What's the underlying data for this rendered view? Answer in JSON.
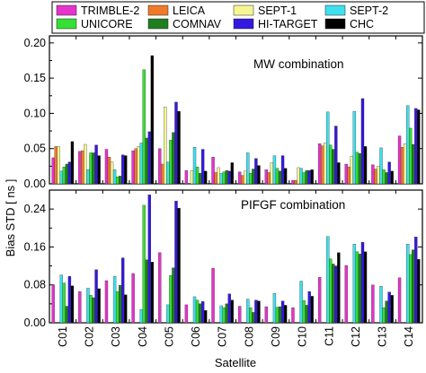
{
  "chart_data": {
    "type": "bar",
    "xlabel": "Satellite",
    "ylabel": "Bias STD [ ns ]",
    "categories": [
      "C01",
      "C02",
      "C03",
      "C04",
      "C05",
      "C06",
      "C07",
      "C08",
      "C09",
      "C10",
      "C11",
      "C12",
      "C13",
      "C14"
    ],
    "legend": [
      {
        "name": "TRIMBLE-2",
        "color": "#e633cc"
      },
      {
        "name": "LEICA",
        "color": "#f07a2a"
      },
      {
        "name": "SEPT-1",
        "color": "#f5f594"
      },
      {
        "name": "SEPT-2",
        "color": "#3fe0ee"
      },
      {
        "name": "UNICORE",
        "color": "#33e033"
      },
      {
        "name": "COMNAV",
        "color": "#1e7e1e"
      },
      {
        "name": "HI-TARGET",
        "color": "#3318e0"
      },
      {
        "name": "CHC",
        "color": "#000000"
      }
    ],
    "panels": [
      {
        "title": "MW combination",
        "ylim": [
          0,
          0.21
        ],
        "yticks": [
          "0.00",
          "0.05",
          "0.10",
          "0.15",
          "0.20"
        ],
        "ytick_values": [
          0,
          0.05,
          0.1,
          0.15,
          0.2
        ],
        "series": [
          {
            "name": "TRIMBLE-2",
            "values": [
              0.037,
              0.046,
              0.049,
              0.047,
              0.05,
              0.019,
              0.038,
              0.017,
              0.02,
              0.005,
              0.057,
              0.028,
              0.027,
              0.068
            ]
          },
          {
            "name": "LEICA",
            "values": [
              0.053,
              0.047,
              0.038,
              0.05,
              0.028,
              0.0,
              0.016,
              0.012,
              0.016,
              0.005,
              0.054,
              0.024,
              0.021,
              0.052
            ]
          },
          {
            "name": "SEPT-1",
            "values": [
              0.053,
              0.056,
              0.031,
              0.053,
              0.109,
              0.019,
              0.023,
              0.018,
              0.03,
              0.023,
              0.058,
              0.039,
              0.025,
              0.057
            ]
          },
          {
            "name": "SEPT-2",
            "values": [
              0.018,
              0.02,
              0.02,
              0.058,
              0.031,
              0.052,
              0.015,
              0.044,
              0.04,
              0.022,
              0.102,
              0.103,
              0.051,
              0.111
            ]
          },
          {
            "name": "UNICORE",
            "values": [
              0.024,
              0.044,
              0.01,
              0.162,
              0.062,
              0.024,
              0.017,
              0.015,
              0.022,
              0.016,
              0.055,
              0.045,
              0.02,
              0.079
            ]
          },
          {
            "name": "COMNAV",
            "values": [
              0.028,
              0.044,
              0.011,
              0.065,
              0.073,
              0.015,
              0.019,
              0.021,
              0.018,
              0.019,
              0.049,
              0.043,
              0.016,
              0.056
            ]
          },
          {
            "name": "HI-TARGET",
            "values": [
              0.031,
              0.055,
              0.041,
              0.074,
              0.116,
              0.049,
              0.018,
              0.036,
              0.04,
              0.019,
              0.082,
              0.121,
              0.031,
              0.107
            ]
          },
          {
            "name": "CHC",
            "values": [
              0.06,
              0.04,
              0.04,
              0.182,
              0.103,
              0.018,
              0.03,
              0.026,
              0.022,
              0.02,
              0.03,
              0.053,
              0.018,
              0.105
            ]
          }
        ]
      },
      {
        "title": "PIFGF combination",
        "ylim": [
          0,
          0.28
        ],
        "yticks": [
          "0.00",
          "0.08",
          "0.16",
          "0.24"
        ],
        "ytick_values": [
          0,
          0.08,
          0.16,
          0.24
        ],
        "series": [
          {
            "name": "TRIMBLE-2",
            "values": [
              0.08,
              0.066,
              0.089,
              0.104,
              0.148,
              0.038,
              0.115,
              0.035,
              0.034,
              0.032,
              0.096,
              0.121,
              0.08,
              0.095
            ]
          },
          {
            "name": "LEICA",
            "values": [
              0.0,
              0.0,
              0.0,
              0.0,
              0.0,
              0.0,
              0.0,
              0.0,
              0.0,
              0.0,
              0.0,
              0.0,
              0.0,
              0.0
            ]
          },
          {
            "name": "SEPT-1",
            "values": [
              0.0,
              0.0,
              0.0,
              0.0,
              0.0,
              0.0,
              0.0,
              0.0,
              0.0,
              0.0,
              0.0,
              0.0,
              0.0,
              0.0
            ]
          },
          {
            "name": "SEPT-2",
            "values": [
              0.101,
              0.073,
              0.098,
              0.028,
              0.038,
              0.055,
              0.036,
              0.05,
              0.062,
              0.088,
              0.182,
              0.166,
              0.077,
              0.166
            ]
          },
          {
            "name": "UNICORE",
            "values": [
              0.084,
              0.058,
              0.066,
              0.248,
              0.1,
              0.048,
              0.032,
              0.032,
              0.033,
              0.047,
              0.135,
              0.15,
              0.032,
              0.144
            ]
          },
          {
            "name": "COMNAV",
            "values": [
              0.035,
              0.053,
              0.079,
              0.133,
              0.116,
              0.04,
              0.04,
              0.022,
              0.034,
              0.037,
              0.124,
              0.145,
              0.046,
              0.154
            ]
          },
          {
            "name": "HI-TARGET",
            "values": [
              0.098,
              0.112,
              0.137,
              0.27,
              0.257,
              0.045,
              0.061,
              0.048,
              0.046,
              0.066,
              0.12,
              0.17,
              0.065,
              0.181
            ]
          },
          {
            "name": "CHC",
            "values": [
              0.078,
              0.072,
              0.059,
              0.128,
              0.242,
              0.026,
              0.048,
              0.046,
              0.037,
              0.056,
              0.148,
              0.15,
              0.058,
              0.134
            ]
          }
        ]
      }
    ]
  }
}
